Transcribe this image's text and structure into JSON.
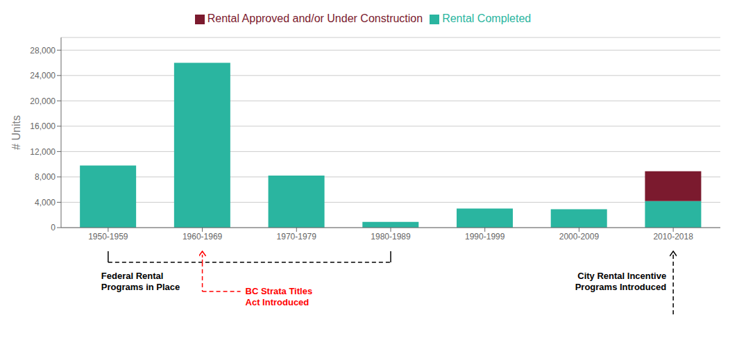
{
  "chart_data": {
    "type": "bar",
    "stacked": true,
    "categories": [
      "1950-1959",
      "1960-1969",
      "1970-1979",
      "1980-1989",
      "1990-1999",
      "2000-2009",
      "2010-2018"
    ],
    "series": [
      {
        "name": "Rental Completed",
        "color": "#2ab5a0",
        "values": [
          9800,
          26000,
          8200,
          900,
          3000,
          2900,
          4200
        ]
      },
      {
        "name": "Rental Approved and/or Under Construction",
        "color": "#7b1a2e",
        "values": [
          0,
          0,
          0,
          0,
          0,
          0,
          4700
        ]
      }
    ],
    "ylabel": "# Units",
    "ylim": [
      0,
      30000
    ],
    "yticks": [
      0,
      {
        "value": 4000,
        "label": "4,000"
      },
      {
        "value": 8000,
        "label": "8,000"
      },
      {
        "value": 12000,
        "label": "12,000"
      },
      {
        "value": 16000,
        "label": "16,000"
      },
      {
        "value": 20000,
        "label": "20,000"
      },
      {
        "value": 24000,
        "label": "24,000"
      },
      {
        "value": 28000,
        "label": "28,000"
      }
    ],
    "grid": true,
    "legend": "top",
    "annotations": [
      "Federal Rental\nPrograms in Place",
      "BC Strata Titles\nAct Introduced",
      "City Rental Incentive\nPrograms Introduced"
    ]
  }
}
